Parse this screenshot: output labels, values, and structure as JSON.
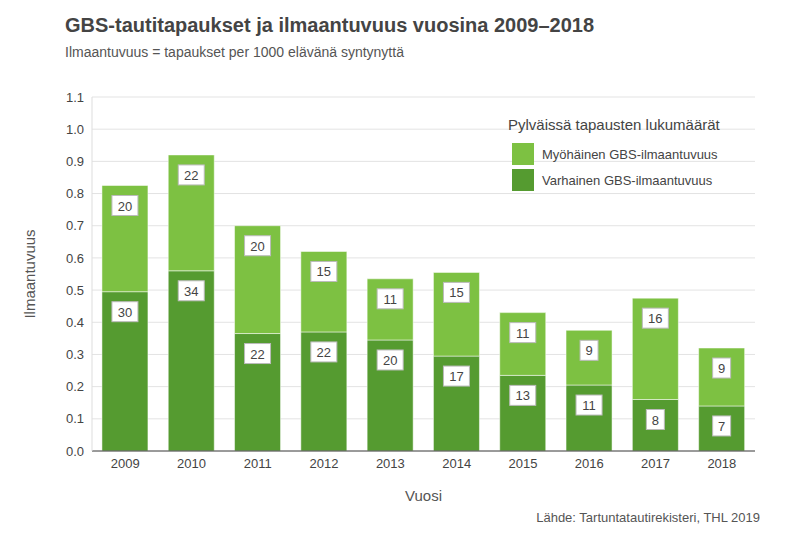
{
  "chart_data": {
    "type": "bar",
    "title": "GBS-tautitapaukset ja ilmaantuvuus vuosina 2009–2018",
    "subtitle": "Ilmaantuvuus = tapaukset per 1000 elävänä syntynyttä",
    "x_label": "Vuosi",
    "y_label": "Ilmaantuvuus",
    "legend_title": "Pylväissä tapausten lukumäärät",
    "source": "Lähde: Tartuntatautirekisteri, THL 2019",
    "categories": [
      "2009",
      "2010",
      "2011",
      "2012",
      "2013",
      "2014",
      "2015",
      "2016",
      "2017",
      "2018"
    ],
    "series": [
      {
        "name": "Varhainen GBS-ilmaantuvuus",
        "color": "#559b30",
        "values": [
          0.495,
          0.56,
          0.365,
          0.37,
          0.345,
          0.295,
          0.235,
          0.205,
          0.16,
          0.14
        ],
        "counts": [
          30,
          34,
          22,
          22,
          20,
          17,
          13,
          11,
          8,
          7
        ]
      },
      {
        "name": "Myöhäinen GBS-ilmaantuvuus",
        "color": "#7dc142",
        "values": [
          0.33,
          0.36,
          0.335,
          0.25,
          0.19,
          0.26,
          0.195,
          0.17,
          0.315,
          0.18
        ],
        "counts": [
          20,
          22,
          20,
          15,
          11,
          15,
          11,
          9,
          16,
          9
        ]
      }
    ],
    "stacked": true,
    "grid": true,
    "legend": "upper right",
    "ylim": [
      0,
      1.1
    ],
    "yticks": [
      {
        "value": 0,
        "label": "0.0"
      },
      0.1,
      0.2,
      0.3,
      0.4,
      0.5,
      0.6,
      0.7,
      0.8,
      0.9,
      {
        "value": 1,
        "label": "1.0"
      },
      1.1
    ]
  }
}
